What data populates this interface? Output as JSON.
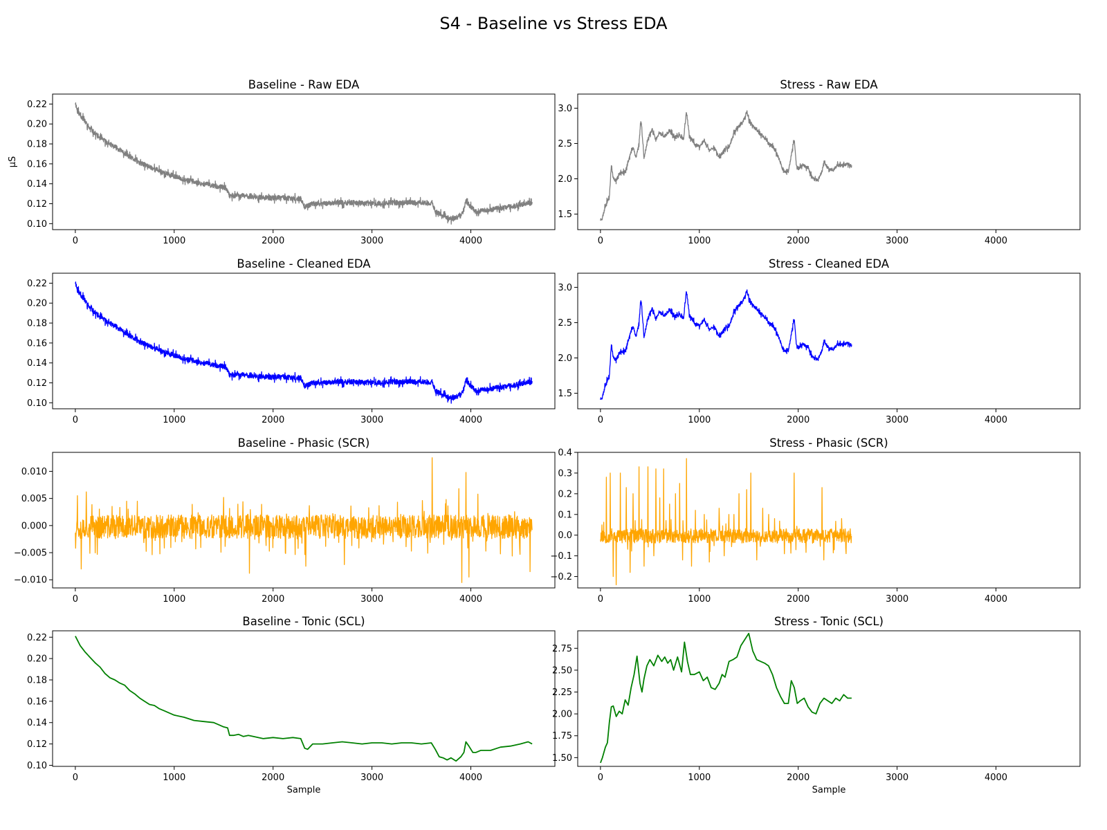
{
  "figure": {
    "title": "S4 - Baseline vs Stress EDA"
  },
  "colors": {
    "raw": "#808080",
    "cleaned": "#0000ff",
    "phasic": "#ffa500",
    "tonic": "#008000"
  },
  "chart_data": [
    {
      "type": "line",
      "id": "baseline-raw",
      "title": "Baseline - Raw EDA",
      "xlabel": "",
      "ylabel": "μS",
      "xlim": [
        -230,
        4850
      ],
      "ylim": [
        0.094,
        0.23
      ],
      "xticks": [
        0,
        1000,
        2000,
        3000,
        4000
      ],
      "yticks": [
        0.1,
        0.12,
        0.14,
        0.16,
        0.18,
        0.2,
        0.22
      ],
      "ytick_labels": [
        "0.10",
        "0.12",
        "0.14",
        "0.16",
        "0.18",
        "0.20",
        "0.22"
      ],
      "color_key": "raw",
      "signal": "baseline",
      "kind": "eda",
      "n": 4620,
      "noise": 0.0035,
      "seed": 11,
      "x": [
        0,
        20,
        80,
        150,
        250,
        350,
        450,
        550,
        650,
        750,
        850,
        950,
        1050,
        1150,
        1250,
        1350,
        1450,
        1520,
        1560,
        1600,
        1700,
        1800,
        1900,
        2000,
        2100,
        2200,
        2280,
        2320,
        2360,
        2400,
        2500,
        2600,
        2800,
        3000,
        3200,
        3400,
        3550,
        3610,
        3640,
        3700,
        3760,
        3800,
        3850,
        3900,
        3930,
        3950,
        4000,
        4050,
        4100,
        4200,
        4300,
        4400,
        4500,
        4600,
        4620
      ],
      "y": [
        0.222,
        0.213,
        0.205,
        0.195,
        0.186,
        0.18,
        0.174,
        0.167,
        0.161,
        0.157,
        0.153,
        0.149,
        0.146,
        0.143,
        0.141,
        0.139,
        0.137,
        0.136,
        0.128,
        0.128,
        0.128,
        0.127,
        0.126,
        0.126,
        0.126,
        0.125,
        0.125,
        0.117,
        0.118,
        0.12,
        0.12,
        0.121,
        0.121,
        0.12,
        0.121,
        0.121,
        0.121,
        0.121,
        0.112,
        0.109,
        0.106,
        0.105,
        0.106,
        0.108,
        0.114,
        0.123,
        0.117,
        0.112,
        0.113,
        0.114,
        0.116,
        0.117,
        0.119,
        0.121,
        0.12
      ]
    },
    {
      "type": "line",
      "id": "stress-raw",
      "title": "Stress - Raw EDA",
      "xlabel": "",
      "ylabel": "",
      "xlim": [
        -230,
        4850
      ],
      "ylim": [
        1.28,
        3.2
      ],
      "xticks": [
        0,
        1000,
        2000,
        3000,
        4000
      ],
      "yticks": [
        1.5,
        2.0,
        2.5,
        3.0
      ],
      "ytick_labels": [
        "1.5",
        "2.0",
        "2.5",
        "3.0"
      ],
      "color_key": "raw",
      "signal": "stress",
      "kind": "eda",
      "n": 2540,
      "noise": 0.035,
      "seed": 23,
      "x": [
        0,
        20,
        50,
        90,
        110,
        130,
        160,
        200,
        250,
        290,
        330,
        360,
        390,
        410,
        440,
        480,
        520,
        560,
        600,
        650,
        700,
        750,
        800,
        840,
        870,
        900,
        950,
        1000,
        1050,
        1100,
        1150,
        1200,
        1250,
        1300,
        1350,
        1400,
        1440,
        1480,
        1500,
        1540,
        1600,
        1650,
        1700,
        1750,
        1800,
        1850,
        1900,
        1960,
        1980,
        2000,
        2050,
        2100,
        2150,
        2200,
        2240,
        2260,
        2300,
        2350,
        2400,
        2450,
        2500,
        2540
      ],
      "y": [
        1.42,
        1.45,
        1.62,
        1.75,
        2.2,
        2.0,
        1.98,
        2.1,
        2.08,
        2.3,
        2.45,
        2.3,
        2.5,
        2.85,
        2.3,
        2.55,
        2.7,
        2.55,
        2.65,
        2.6,
        2.68,
        2.58,
        2.62,
        2.55,
        2.95,
        2.6,
        2.5,
        2.45,
        2.55,
        2.4,
        2.45,
        2.3,
        2.4,
        2.45,
        2.65,
        2.75,
        2.8,
        2.95,
        2.85,
        2.75,
        2.65,
        2.6,
        2.5,
        2.45,
        2.3,
        2.1,
        2.1,
        2.55,
        2.2,
        2.15,
        2.2,
        2.15,
        2.0,
        1.98,
        2.1,
        2.25,
        2.15,
        2.12,
        2.2,
        2.18,
        2.22,
        2.18
      ]
    },
    {
      "type": "line",
      "id": "baseline-cleaned",
      "title": "Baseline - Cleaned EDA",
      "xlabel": "",
      "ylabel": "",
      "xlim": [
        -230,
        4850
      ],
      "ylim": [
        0.094,
        0.23
      ],
      "xticks": [
        0,
        1000,
        2000,
        3000,
        4000
      ],
      "yticks": [
        0.1,
        0.12,
        0.14,
        0.16,
        0.18,
        0.2,
        0.22
      ],
      "ytick_labels": [
        "0.10",
        "0.12",
        "0.14",
        "0.16",
        "0.18",
        "0.20",
        "0.22"
      ],
      "color_key": "cleaned",
      "signal": "baseline",
      "kind": "eda",
      "n": 4620,
      "noise": 0.0035,
      "seed": 11,
      "x": [
        0,
        20,
        80,
        150,
        250,
        350,
        450,
        550,
        650,
        750,
        850,
        950,
        1050,
        1150,
        1250,
        1350,
        1450,
        1520,
        1560,
        1600,
        1700,
        1800,
        1900,
        2000,
        2100,
        2200,
        2280,
        2320,
        2360,
        2400,
        2500,
        2600,
        2800,
        3000,
        3200,
        3400,
        3550,
        3610,
        3640,
        3700,
        3760,
        3800,
        3850,
        3900,
        3930,
        3950,
        4000,
        4050,
        4100,
        4200,
        4300,
        4400,
        4500,
        4600,
        4620
      ],
      "y": [
        0.222,
        0.213,
        0.205,
        0.195,
        0.186,
        0.18,
        0.174,
        0.167,
        0.161,
        0.157,
        0.153,
        0.149,
        0.146,
        0.143,
        0.141,
        0.139,
        0.137,
        0.136,
        0.128,
        0.128,
        0.128,
        0.127,
        0.126,
        0.126,
        0.126,
        0.125,
        0.125,
        0.117,
        0.118,
        0.12,
        0.12,
        0.121,
        0.121,
        0.12,
        0.121,
        0.121,
        0.121,
        0.121,
        0.112,
        0.109,
        0.106,
        0.105,
        0.106,
        0.108,
        0.114,
        0.123,
        0.117,
        0.112,
        0.113,
        0.114,
        0.116,
        0.117,
        0.119,
        0.121,
        0.12
      ]
    },
    {
      "type": "line",
      "id": "stress-cleaned",
      "title": "Stress - Cleaned EDA",
      "xlabel": "",
      "ylabel": "",
      "xlim": [
        -230,
        4850
      ],
      "ylim": [
        1.28,
        3.2
      ],
      "xticks": [
        0,
        1000,
        2000,
        3000,
        4000
      ],
      "yticks": [
        1.5,
        2.0,
        2.5,
        3.0
      ],
      "ytick_labels": [
        "1.5",
        "2.0",
        "2.5",
        "3.0"
      ],
      "color_key": "cleaned",
      "signal": "stress",
      "kind": "eda",
      "n": 2540,
      "noise": 0.035,
      "seed": 23,
      "x": [
        0,
        20,
        50,
        90,
        110,
        130,
        160,
        200,
        250,
        290,
        330,
        360,
        390,
        410,
        440,
        480,
        520,
        560,
        600,
        650,
        700,
        750,
        800,
        840,
        870,
        900,
        950,
        1000,
        1050,
        1100,
        1150,
        1200,
        1250,
        1300,
        1350,
        1400,
        1440,
        1480,
        1500,
        1540,
        1600,
        1650,
        1700,
        1750,
        1800,
        1850,
        1900,
        1960,
        1980,
        2000,
        2050,
        2100,
        2150,
        2200,
        2240,
        2260,
        2300,
        2350,
        2400,
        2450,
        2500,
        2540
      ],
      "y": [
        1.42,
        1.45,
        1.62,
        1.75,
        2.2,
        2.0,
        1.98,
        2.1,
        2.08,
        2.3,
        2.45,
        2.3,
        2.5,
        2.85,
        2.3,
        2.55,
        2.7,
        2.55,
        2.65,
        2.6,
        2.68,
        2.58,
        2.62,
        2.55,
        2.95,
        2.6,
        2.5,
        2.45,
        2.55,
        2.4,
        2.45,
        2.3,
        2.4,
        2.45,
        2.65,
        2.75,
        2.8,
        2.95,
        2.85,
        2.75,
        2.65,
        2.6,
        2.5,
        2.45,
        2.3,
        2.1,
        2.1,
        2.55,
        2.2,
        2.15,
        2.2,
        2.15,
        2.0,
        1.98,
        2.1,
        2.25,
        2.15,
        2.12,
        2.2,
        2.18,
        2.22,
        2.18
      ]
    },
    {
      "type": "line",
      "id": "baseline-phasic",
      "title": "Baseline - Phasic (SCR)",
      "xlabel": "",
      "ylabel": "",
      "xlim": [
        -230,
        4850
      ],
      "ylim": [
        -0.0115,
        0.0135
      ],
      "xticks": [
        0,
        1000,
        2000,
        3000,
        4000
      ],
      "yticks": [
        -0.01,
        -0.005,
        0.0,
        0.005,
        0.01
      ],
      "ytick_labels": [
        "−0.010",
        "−0.005",
        "0.000",
        "0.005",
        "0.010"
      ],
      "color_key": "phasic",
      "signal": "baseline",
      "kind": "phasic",
      "n": 4620,
      "noise": 0.0022,
      "seed": 37,
      "x": [
        0,
        4620
      ],
      "y": [
        0.0,
        0.0
      ],
      "spikes": [
        [
          20,
          0.0055
        ],
        [
          110,
          0.0062
        ],
        [
          1500,
          0.0052
        ],
        [
          3610,
          0.0125
        ],
        [
          3750,
          0.0048
        ],
        [
          3880,
          0.0068
        ],
        [
          3950,
          0.0098
        ],
        [
          4070,
          0.0058
        ],
        [
          3910,
          -0.0105
        ],
        [
          3980,
          -0.0095
        ],
        [
          60,
          -0.008
        ],
        [
          4600,
          -0.0085
        ],
        [
          1760,
          -0.0088
        ],
        [
          2330,
          -0.0075
        ],
        [
          2720,
          -0.0072
        ]
      ]
    },
    {
      "type": "line",
      "id": "stress-phasic",
      "title": "Stress - Phasic (SCR)",
      "xlabel": "",
      "ylabel": "",
      "xlim": [
        -230,
        4850
      ],
      "ylim": [
        -0.255,
        0.4
      ],
      "xticks": [
        0,
        1000,
        2000,
        3000,
        4000
      ],
      "yticks": [
        -0.2,
        -0.1,
        0.0,
        0.1,
        0.2,
        0.3,
        0.4
      ],
      "ytick_labels": [
        "−0.2",
        "−0.1",
        "0.0",
        "0.1",
        "0.2",
        "0.3",
        "0.4"
      ],
      "color_key": "phasic",
      "signal": "stress",
      "kind": "phasic",
      "n": 2540,
      "noise": 0.035,
      "seed": 53,
      "x": [
        0,
        2540
      ],
      "y": [
        0.0,
        0.0
      ],
      "spikes": [
        [
          60,
          0.28
        ],
        [
          100,
          0.3
        ],
        [
          130,
          -0.2
        ],
        [
          160,
          -0.24
        ],
        [
          200,
          0.3
        ],
        [
          260,
          0.23
        ],
        [
          300,
          -0.18
        ],
        [
          330,
          0.2
        ],
        [
          390,
          0.33
        ],
        [
          440,
          -0.15
        ],
        [
          480,
          0.33
        ],
        [
          540,
          -0.1
        ],
        [
          560,
          0.32
        ],
        [
          600,
          0.18
        ],
        [
          640,
          0.32
        ],
        [
          700,
          0.15
        ],
        [
          760,
          0.2
        ],
        [
          800,
          0.25
        ],
        [
          830,
          -0.12
        ],
        [
          870,
          0.37
        ],
        [
          920,
          -0.15
        ],
        [
          960,
          0.12
        ],
        [
          1050,
          0.1
        ],
        [
          1100,
          -0.13
        ],
        [
          1200,
          0.13
        ],
        [
          1250,
          -0.1
        ],
        [
          1300,
          0.1
        ],
        [
          1350,
          0.1
        ],
        [
          1400,
          0.2
        ],
        [
          1480,
          0.22
        ],
        [
          1520,
          0.3
        ],
        [
          1580,
          -0.12
        ],
        [
          1640,
          0.13
        ],
        [
          1700,
          0.1
        ],
        [
          1760,
          0.08
        ],
        [
          1960,
          0.3
        ],
        [
          2240,
          0.23
        ],
        [
          2260,
          -0.12
        ],
        [
          2440,
          0.08
        ]
      ]
    },
    {
      "type": "line",
      "id": "baseline-tonic",
      "title": "Baseline - Tonic (SCL)",
      "xlabel": "Sample",
      "ylabel": "",
      "xlim": [
        -230,
        4850
      ],
      "ylim": [
        0.099,
        0.226
      ],
      "xticks": [
        0,
        1000,
        2000,
        3000,
        4000
      ],
      "yticks": [
        0.1,
        0.12,
        0.14,
        0.16,
        0.18,
        0.2,
        0.22
      ],
      "ytick_labels": [
        "0.10",
        "0.12",
        "0.14",
        "0.16",
        "0.18",
        "0.20",
        "0.22"
      ],
      "color_key": "tonic",
      "signal": "baseline",
      "kind": "smooth",
      "n": 0,
      "noise": 0,
      "seed": 0,
      "x": [
        0,
        50,
        100,
        150,
        200,
        250,
        300,
        350,
        400,
        450,
        500,
        550,
        600,
        650,
        700,
        750,
        800,
        850,
        900,
        950,
        1000,
        1100,
        1200,
        1300,
        1400,
        1450,
        1500,
        1540,
        1560,
        1600,
        1650,
        1700,
        1750,
        1800,
        1900,
        2000,
        2100,
        2200,
        2280,
        2320,
        2350,
        2400,
        2450,
        2500,
        2600,
        2700,
        2800,
        2900,
        3000,
        3100,
        3200,
        3300,
        3400,
        3500,
        3600,
        3640,
        3680,
        3720,
        3760,
        3800,
        3850,
        3900,
        3930,
        3950,
        3980,
        4020,
        4050,
        4100,
        4200,
        4300,
        4400,
        4500,
        4580,
        4620
      ],
      "y": [
        0.221,
        0.212,
        0.206,
        0.201,
        0.196,
        0.192,
        0.186,
        0.182,
        0.18,
        0.177,
        0.175,
        0.17,
        0.167,
        0.163,
        0.16,
        0.157,
        0.156,
        0.153,
        0.151,
        0.149,
        0.147,
        0.145,
        0.142,
        0.141,
        0.14,
        0.138,
        0.136,
        0.135,
        0.128,
        0.128,
        0.129,
        0.127,
        0.128,
        0.127,
        0.125,
        0.126,
        0.125,
        0.126,
        0.125,
        0.116,
        0.115,
        0.12,
        0.12,
        0.12,
        0.121,
        0.122,
        0.121,
        0.12,
        0.121,
        0.121,
        0.12,
        0.121,
        0.121,
        0.12,
        0.121,
        0.115,
        0.108,
        0.107,
        0.105,
        0.107,
        0.104,
        0.108,
        0.112,
        0.122,
        0.118,
        0.112,
        0.112,
        0.114,
        0.114,
        0.117,
        0.118,
        0.12,
        0.122,
        0.12
      ]
    },
    {
      "type": "line",
      "id": "stress-tonic",
      "title": "Stress - Tonic (SCL)",
      "xlabel": "Sample",
      "ylabel": "",
      "xlim": [
        -230,
        4850
      ],
      "ylim": [
        1.4,
        2.95
      ],
      "xticks": [
        0,
        1000,
        2000,
        3000,
        4000
      ],
      "yticks": [
        1.5,
        1.75,
        2.0,
        2.25,
        2.5,
        2.75
      ],
      "ytick_labels": [
        "1.50",
        "1.75",
        "2.00",
        "2.25",
        "2.50",
        "2.75"
      ],
      "color_key": "tonic",
      "signal": "stress",
      "kind": "smooth",
      "n": 0,
      "noise": 0,
      "seed": 0,
      "x": [
        0,
        20,
        50,
        70,
        90,
        110,
        130,
        160,
        190,
        220,
        250,
        280,
        310,
        340,
        370,
        400,
        420,
        440,
        470,
        500,
        540,
        580,
        620,
        650,
        680,
        710,
        740,
        780,
        820,
        850,
        880,
        910,
        950,
        1000,
        1040,
        1080,
        1120,
        1160,
        1200,
        1230,
        1260,
        1300,
        1340,
        1380,
        1420,
        1460,
        1500,
        1540,
        1580,
        1620,
        1660,
        1700,
        1740,
        1780,
        1820,
        1860,
        1900,
        1930,
        1960,
        1990,
        2020,
        2060,
        2100,
        2140,
        2180,
        2220,
        2260,
        2300,
        2340,
        2380,
        2420,
        2460,
        2500,
        2540
      ],
      "y": [
        1.44,
        1.5,
        1.62,
        1.67,
        1.9,
        2.08,
        2.09,
        1.97,
        2.03,
        2.0,
        2.16,
        2.1,
        2.3,
        2.45,
        2.66,
        2.35,
        2.25,
        2.4,
        2.55,
        2.62,
        2.55,
        2.67,
        2.6,
        2.65,
        2.58,
        2.62,
        2.5,
        2.65,
        2.48,
        2.82,
        2.6,
        2.45,
        2.45,
        2.48,
        2.38,
        2.42,
        2.3,
        2.28,
        2.35,
        2.45,
        2.42,
        2.6,
        2.62,
        2.65,
        2.78,
        2.85,
        2.92,
        2.72,
        2.62,
        2.6,
        2.58,
        2.55,
        2.45,
        2.3,
        2.2,
        2.12,
        2.12,
        2.38,
        2.3,
        2.12,
        2.15,
        2.18,
        2.08,
        2.02,
        2.0,
        2.12,
        2.18,
        2.15,
        2.12,
        2.18,
        2.15,
        2.22,
        2.18,
        2.18
      ]
    }
  ]
}
